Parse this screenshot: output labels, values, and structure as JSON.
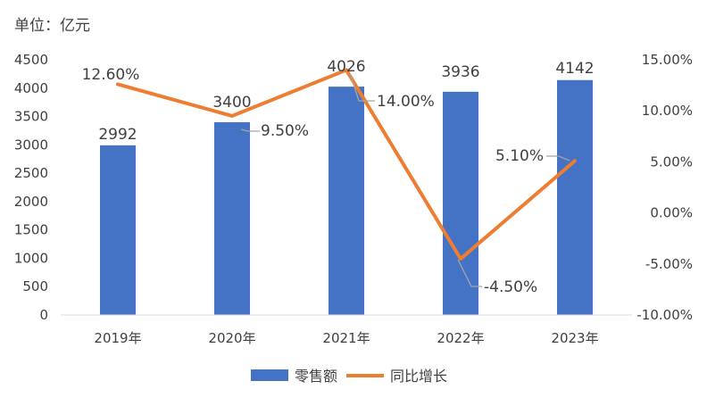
{
  "chart_data": {
    "type": "bar",
    "unit_label": "单位：亿元",
    "categories": [
      "2019年",
      "2020年",
      "2021年",
      "2022年",
      "2023年"
    ],
    "series": [
      {
        "name": "零售额",
        "type": "bar",
        "axis": "left",
        "values": [
          2992,
          3400,
          4026,
          3936,
          4142
        ],
        "labels": [
          "2992",
          "3400",
          "4026",
          "3936",
          "4142"
        ],
        "color": "#4472C4"
      },
      {
        "name": "同比增长",
        "type": "line",
        "axis": "right",
        "values": [
          12.6,
          9.5,
          14.0,
          -4.5,
          5.1
        ],
        "labels": [
          "12.60%",
          "9.50%",
          "14.00%",
          "-4.50%",
          "5.10%"
        ],
        "color": "#ED7D31"
      }
    ],
    "y_left": {
      "range": [
        0,
        4500
      ],
      "ticks": [
        "0",
        "500",
        "1000",
        "1500",
        "2000",
        "2500",
        "3000",
        "3500",
        "4000",
        "4500"
      ]
    },
    "y_right": {
      "range": [
        -10,
        15
      ],
      "ticks": [
        "-10.00%",
        "-5.00%",
        "0.00%",
        "5.00%",
        "10.00%",
        "15.00%"
      ]
    },
    "grid": false,
    "legend": "bottom-center",
    "leader_line_color": "#A5A5A5",
    "text_color": "#404040"
  }
}
